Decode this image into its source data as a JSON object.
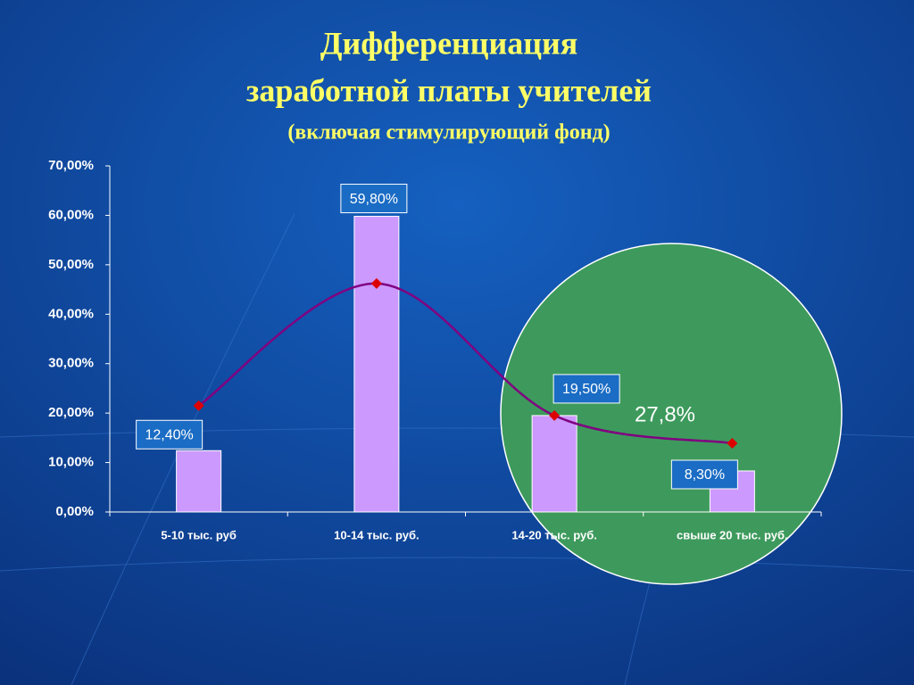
{
  "chart_data": {
    "type": "bar",
    "title": [
      "Дифференциация",
      "заработной платы учителей"
    ],
    "subtitle": "(включая стимулирующий фонд)",
    "categories": [
      "5-10 тыс. руб",
      "10-14 тыс. руб.",
      "14-20 тыс. руб.",
      "свыше 20 тыс. руб."
    ],
    "series": [
      {
        "type": "bar",
        "color": "#cc99ff",
        "values": [
          12.4,
          59.8,
          19.5,
          8.3
        ],
        "value_labels": [
          "12,40%",
          "59,80%",
          "19,50%",
          "8,30%"
        ]
      },
      {
        "type": "line",
        "color": "#800080",
        "marker_color": "#dd0000",
        "values": [
          21.5,
          46.2,
          19.5,
          13.9
        ]
      }
    ],
    "annotation": "27,8%",
    "ylim": [
      0,
      70
    ],
    "yticks": [
      {
        "value": 0,
        "label": "0,00%"
      },
      {
        "value": 10,
        "label": "10,00%"
      },
      {
        "value": 20,
        "label": "20,00%"
      },
      {
        "value": 30,
        "label": "30,00%"
      },
      {
        "value": 40,
        "label": "40,00%"
      },
      {
        "value": 50,
        "label": "50,00%"
      },
      {
        "value": 60,
        "label": "60,00%"
      },
      {
        "value": 70,
        "label": "70,00%"
      }
    ],
    "grid": false
  }
}
